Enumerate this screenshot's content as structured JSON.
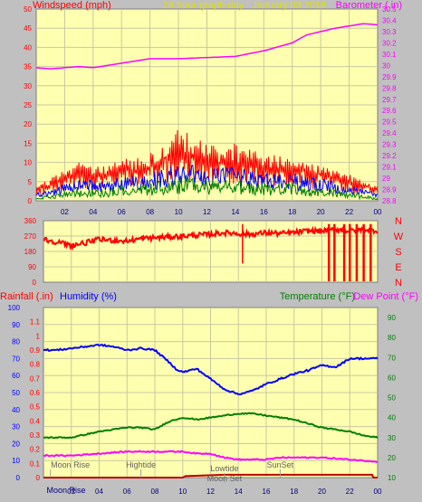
{
  "colors": {
    "background": "#c0c0c0",
    "plot": "#ffffb0",
    "grid": "#c8c8a0",
    "wind": "#ff0000",
    "gust_avg": "#0000ff",
    "wind_avg": "#008000",
    "barometer": "#ff00ff",
    "title": "#e0e000",
    "direction": "#ff0000",
    "rainfall": "#ff0000",
    "humidity": "#0000ff",
    "temperature": "#008000",
    "dewpoint": "#ff00ff",
    "tide_text": "#606060"
  },
  "chart_data": [
    {
      "type": "line",
      "title": "24 hour graph day : January 03 2018",
      "ylabel": "Windspeed (mph)",
      "y2label": "Barometer (.in)",
      "ylim": [
        0,
        50
      ],
      "y2lim": [
        28.8,
        30.5
      ],
      "xlim": [
        0,
        24
      ],
      "x_ticks": [
        "02",
        "04",
        "06",
        "08",
        "10",
        "12",
        "14",
        "16",
        "18",
        "20",
        "22",
        "00"
      ],
      "y_ticks": [
        "0",
        "5",
        "10",
        "15",
        "20",
        "25",
        "30",
        "35",
        "40",
        "45",
        "50"
      ],
      "y2_ticks": [
        "28.8",
        "28.9",
        "29",
        "29.1",
        "29.2",
        "29.3",
        "29.4",
        "29.5",
        "29.6",
        "29.7",
        "29.8",
        "29.9",
        "30",
        "30.1",
        "30.2",
        "30.3",
        "30.4",
        "30.5"
      ],
      "grid": true,
      "wind_envelope": {
        "x": [
          0,
          1,
          2,
          3,
          4,
          5,
          6,
          7,
          8,
          9,
          10,
          11,
          12,
          13,
          14,
          15,
          16,
          17,
          18,
          19,
          20,
          21,
          22,
          23,
          24
        ],
        "gust_max": [
          4,
          6,
          8,
          10,
          9,
          10,
          11,
          11,
          13,
          16,
          20,
          17,
          15,
          14,
          15,
          14,
          13,
          12,
          11,
          10,
          9,
          8,
          7,
          5,
          4
        ],
        "gust_typ": [
          3,
          4,
          6,
          7,
          7,
          7,
          8,
          8,
          9,
          11,
          13,
          12,
          10,
          10,
          10,
          9,
          9,
          8,
          8,
          8,
          7,
          6,
          5,
          4,
          3
        ],
        "avg_typ": [
          1.5,
          2,
          3,
          4,
          4,
          4,
          4.5,
          4.5,
          5,
          6,
          7,
          6.5,
          6,
          6,
          6,
          5.5,
          5,
          5,
          5,
          4.5,
          4,
          3.5,
          3,
          2,
          1.5
        ],
        "low_typ": [
          0.5,
          1,
          1.5,
          2,
          2,
          2,
          2.5,
          2.5,
          3,
          3.5,
          4,
          4,
          3.5,
          3.5,
          3.5,
          3,
          3,
          3,
          3,
          2.5,
          2,
          2,
          1.5,
          1,
          0.5
        ]
      },
      "barometer": {
        "x": [
          0,
          1,
          2,
          3,
          4,
          6,
          8,
          10,
          12,
          14,
          16,
          18,
          19,
          20,
          21,
          22,
          23,
          24
        ],
        "y": [
          29.98,
          29.97,
          29.98,
          29.99,
          29.98,
          30.02,
          30.06,
          30.06,
          30.07,
          30.08,
          30.13,
          30.2,
          30.27,
          30.3,
          30.33,
          30.35,
          30.37,
          30.36
        ]
      }
    },
    {
      "type": "line",
      "title": "",
      "ylabel": "",
      "ylim": [
        0,
        360
      ],
      "xlim": [
        0,
        24
      ],
      "y_ticks": [
        "0",
        "90",
        "180",
        "270",
        "360"
      ],
      "compass_labels": [
        "N",
        "W",
        "S",
        "E",
        "N"
      ],
      "grid": true,
      "direction": {
        "x": [
          0,
          1,
          2,
          3,
          4,
          5,
          6,
          7,
          8,
          9,
          10,
          11,
          12,
          13,
          14,
          15,
          16,
          17,
          18,
          19,
          20,
          21,
          22,
          23,
          24
        ],
        "y": [
          250,
          235,
          215,
          230,
          250,
          245,
          240,
          255,
          260,
          265,
          270,
          275,
          280,
          290,
          285,
          280,
          290,
          285,
          290,
          300,
          300,
          310,
          300,
          310,
          300
        ]
      }
    },
    {
      "type": "line",
      "title": "",
      "ylabel": "Rainfall (.in)",
      "y2label": "Humidity (%)",
      "y3label": "Temperature (°F)",
      "y4label": "Dew Point (°F)",
      "ylim": [
        0,
        1.2
      ],
      "y2lim": [
        0,
        100
      ],
      "y3lim": [
        10,
        95
      ],
      "xlim": [
        0,
        24
      ],
      "x_ticks": [
        "02",
        "04",
        "06",
        "08",
        "10",
        "12",
        "14",
        "16",
        "18",
        "20",
        "22",
        "00"
      ],
      "rain_ticks": [
        "0",
        "0.1",
        "0.2",
        "0.3",
        "0.4",
        "0.5",
        "0.6",
        "0.7",
        "0.8",
        "0.9",
        "1",
        "1.1"
      ],
      "hum_ticks": [
        "0",
        "10",
        "20",
        "30",
        "40",
        "50",
        "60",
        "70",
        "80",
        "90",
        "100"
      ],
      "temp_ticks": [
        "10",
        "20",
        "30",
        "40",
        "50",
        "60",
        "70",
        "80",
        "90"
      ],
      "grid": true,
      "humidity": {
        "x": [
          0,
          1,
          2,
          3,
          4,
          5,
          6,
          7,
          8,
          9,
          9.5,
          10,
          11,
          12,
          13,
          14,
          15,
          16,
          17,
          18,
          19,
          20,
          21,
          22,
          23,
          24
        ],
        "y": [
          75,
          75,
          76,
          77,
          78,
          77,
          75,
          76,
          75,
          68,
          64,
          62,
          64,
          58,
          52,
          49,
          51,
          55,
          58,
          61,
          63,
          66,
          65,
          70,
          70,
          70
        ]
      },
      "temperature": {
        "x": [
          0,
          2,
          4,
          6,
          7,
          8,
          9,
          10,
          11,
          12,
          13,
          14,
          15,
          16,
          17,
          18,
          19,
          20,
          21,
          22,
          23,
          24
        ],
        "y": [
          30,
          30,
          33,
          35,
          35,
          34,
          38,
          40,
          39,
          40,
          41,
          42,
          42,
          41,
          40,
          39,
          37,
          35,
          34,
          33,
          31,
          30
        ]
      },
      "dewpoint": {
        "x": [
          0,
          2,
          4,
          6,
          8,
          10,
          11,
          12,
          13,
          14,
          15,
          16,
          17,
          18,
          20,
          22,
          24
        ],
        "y": [
          21,
          21,
          22,
          23,
          23,
          23,
          22,
          22,
          20,
          19,
          19,
          19,
          20,
          20,
          20,
          19,
          18
        ]
      },
      "rainfall": {
        "x": [
          0,
          10,
          10.2,
          13,
          14,
          16,
          18,
          20,
          22,
          23.6,
          23.7,
          24
        ],
        "y": [
          0,
          0,
          0.01,
          0.02,
          0.02,
          0.02,
          0.02,
          0.02,
          0.02,
          0.02,
          0,
          0
        ]
      },
      "events": [
        {
          "label": "Moon Rise",
          "x": 0.5,
          "row": "upper"
        },
        {
          "label": "Moon Rise",
          "x": 0.5,
          "row": "bottom"
        },
        {
          "label": "Hightide",
          "x": 7.0,
          "row": "upper"
        },
        {
          "label": "Lowtide",
          "x": 13.0,
          "row": "mid"
        },
        {
          "label": "Moon Set",
          "x": 13.0,
          "row": "low"
        },
        {
          "label": "SunSet",
          "x": 17.0,
          "row": "upper"
        }
      ]
    }
  ]
}
